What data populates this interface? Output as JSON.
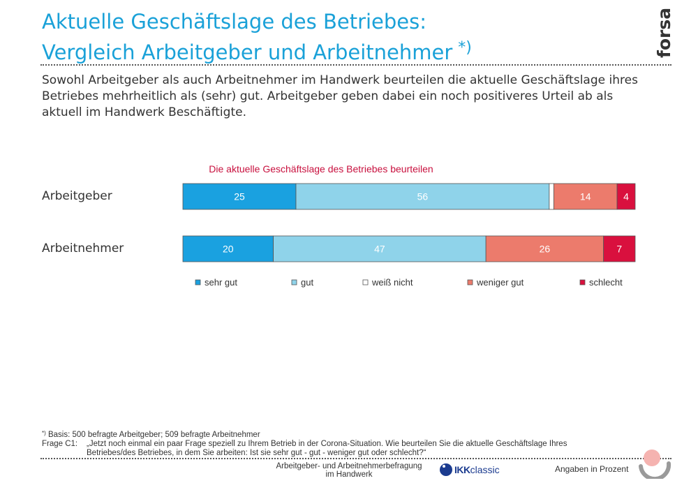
{
  "header": {
    "title_line1": "Aktuelle Geschäftslage des Betriebes:",
    "title_line2": "Vergleich Arbeitgeber und Arbeitnehmer",
    "title_mark": "*)",
    "logo_text": "forsa."
  },
  "intro": "Sowohl Arbeitgeber als auch Arbeitnehmer im Handwerk beurteilen die aktuelle Geschäftslage ihres Betriebes mehrheitlich als (sehr) gut. Arbeitgeber geben dabei ein noch positiveres Urteil ab als aktuell im Handwerk Beschäftigte.",
  "chart_data": {
    "type": "bar",
    "orientation": "horizontal",
    "stacked": true,
    "title": "Die aktuelle Geschäftslage des Betriebes beurteilen",
    "categories": [
      "Arbeitgeber",
      "Arbeitnehmer"
    ],
    "series": [
      {
        "name": "sehr gut",
        "values": [
          25,
          20
        ],
        "color": "#1aa1e0",
        "label_color": "#ffffff"
      },
      {
        "name": "gut",
        "values": [
          56,
          47
        ],
        "color": "#8fd3ea",
        "label_color": "#ffffff"
      },
      {
        "name": "weiß nicht",
        "values": [
          1,
          0
        ],
        "color": "#ffffff",
        "label_color": "#333333"
      },
      {
        "name": "weniger gut",
        "values": [
          14,
          26
        ],
        "color": "#ec7b6c",
        "label_color": "#ffffff"
      },
      {
        "name": "schlecht",
        "values": [
          4,
          7
        ],
        "color": "#d9103e",
        "label_color": "#ffffff"
      }
    ],
    "data_labels": [
      [
        "25",
        "56",
        "",
        "14",
        "4"
      ],
      [
        "20",
        "47",
        "",
        "26",
        "7"
      ]
    ],
    "xlim": [
      0,
      100
    ],
    "unit": "Angaben in Prozent",
    "legend_position": "bottom",
    "title_color": "#c8103e"
  },
  "footnote": {
    "mark": "*)",
    "basis": "Basis: 500 befragte Arbeitgeber; 509 befragte Arbeitnehmer",
    "question_label": "Frage C1:",
    "question_text": "„Jetzt noch einmal ein paar Frage speziell zu Ihrem Betrieb in der Corona-Situation. Wie beurteilen Sie die aktuelle Geschäftslage Ihres Betriebes/des Betriebes, in dem Sie arbeiten: Ist sie sehr gut - gut - weniger gut oder schlecht?“"
  },
  "footer": {
    "center_line1": "Arbeitgeber- und Arbeitnehmerbefragung",
    "center_line2": "im Handwerk",
    "sponsor_prefix": "IKK",
    "sponsor_suffix": "classic",
    "right": "Angaben in Prozent"
  },
  "colors": {
    "title": "#1aa1d8",
    "accent_red": "#c8103e"
  }
}
